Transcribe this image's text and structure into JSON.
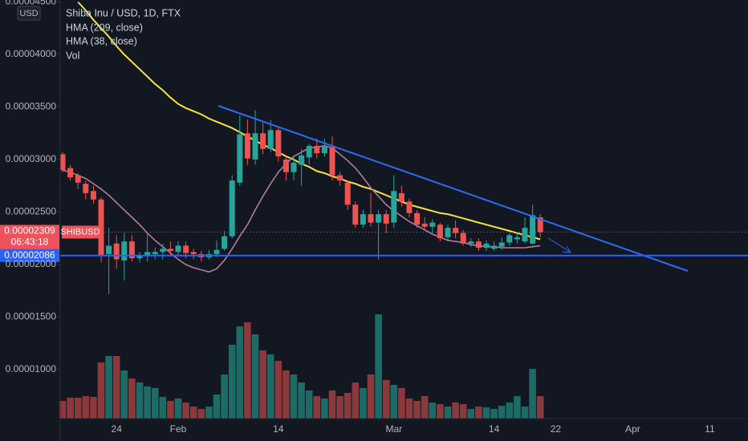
{
  "chart_data": {
    "type": "candlestick",
    "title": "Shiba Inu / USD, 1D, FTX",
    "currency": "USD",
    "categories": [
      null,
      null,
      null,
      null,
      null,
      null,
      null,
      "24",
      null,
      null,
      null,
      null,
      null,
      null,
      null,
      "Feb",
      null,
      null,
      null,
      null,
      null,
      null,
      null,
      null,
      null,
      null,
      null,
      null,
      "14",
      null,
      null,
      null,
      null,
      null,
      null,
      null,
      null,
      null,
      null,
      null,
      null,
      null,
      null,
      "Mar",
      null,
      null,
      null,
      null,
      null,
      null,
      null,
      null,
      null,
      null,
      null,
      null,
      "14",
      null,
      null,
      null,
      null,
      null,
      null,
      null,
      "22",
      null,
      null,
      null,
      null,
      null,
      null,
      null,
      null,
      null,
      "Apr",
      null,
      null,
      null,
      null,
      null,
      null,
      null,
      null,
      null,
      "11",
      null,
      null,
      null,
      null,
      null
    ],
    "open": [
      3.05e-05,
      2.92e-05,
      2.85e-05,
      2.77e-05,
      2.7e-05,
      2.62e-05,
      2.1e-05,
      2.2e-05,
      2.04e-05,
      2.22e-05,
      2.06e-05,
      2.08e-05,
      2.1e-05,
      2.12e-05,
      2.15e-05,
      2.12e-05,
      2.18e-05,
      2.12e-05,
      2.1e-05,
      2.07e-05,
      2.1e-05,
      2.15e-05,
      2.27e-05,
      2.78e-05,
      3.25e-05,
      3e-05,
      3.25e-05,
      3.1e-05,
      3.28e-05,
      3e-05,
      2.88e-05,
      2.95e-05,
      3.02e-05,
      3.13e-05,
      3.06e-05,
      3.12e-05,
      2.85e-05,
      2.78e-05,
      2.57e-05,
      2.38e-05,
      2.48e-05,
      2.4e-05,
      2.48e-05,
      2.4e-05,
      2.68e-05,
      2.6e-05,
      2.49e-05,
      2.39e-05,
      2.36e-05,
      2.38e-05,
      2.26e-05,
      2.35e-05,
      2.3e-05,
      2.2e-05,
      2.22e-05,
      2.16e-05,
      2.15e-05,
      2.17e-05,
      2.21e-05,
      2.24e-05,
      2.22e-05,
      2.2e-05,
      2.45e-05,
      null,
      null,
      null,
      null,
      null,
      null,
      null,
      null,
      null,
      null,
      null,
      null,
      null,
      null,
      null,
      null,
      null,
      null,
      null,
      null,
      null,
      null,
      null,
      null,
      null,
      null,
      null
    ],
    "high": [
      3.07e-05,
      2.95e-05,
      2.87e-05,
      2.8e-05,
      2.75e-05,
      2.64e-05,
      2.35e-05,
      2.28e-05,
      2.3e-05,
      2.28e-05,
      2.12e-05,
      2.3e-05,
      2.16e-05,
      2.2e-05,
      2.22e-05,
      2.22e-05,
      2.22e-05,
      2.15e-05,
      2.13e-05,
      2.14e-05,
      2.23e-05,
      2.32e-05,
      2.85e-05,
      3.42e-05,
      3.38e-05,
      3.47e-05,
      3.35e-05,
      3.38e-05,
      3.3e-05,
      3.02e-05,
      3.02e-05,
      3.1e-05,
      3.15e-05,
      3.2e-05,
      3.2e-05,
      3.22e-05,
      2.88e-05,
      2.8e-05,
      2.6e-05,
      2.52e-05,
      2.68e-05,
      2.52e-05,
      2.52e-05,
      2.85e-05,
      2.75e-05,
      2.63e-05,
      2.52e-05,
      2.45e-05,
      2.43e-05,
      2.4e-05,
      2.38e-05,
      2.42e-05,
      2.33e-05,
      2.25e-05,
      2.25e-05,
      2.23e-05,
      2.22e-05,
      2.26e-05,
      2.3e-05,
      2.3e-05,
      2.45e-05,
      2.57e-05,
      2.48e-05,
      null,
      null,
      null,
      null,
      null,
      null,
      null,
      null,
      null,
      null,
      null,
      null,
      null,
      null,
      null,
      null,
      null,
      null,
      null,
      null,
      null,
      null,
      null,
      null,
      null,
      null,
      null
    ],
    "low": [
      2.88e-05,
      2.8e-05,
      2.72e-05,
      2.62e-05,
      2.58e-05,
      2.02e-05,
      1.72e-05,
      1.96e-05,
      1.85e-05,
      2.03e-05,
      2.02e-05,
      2.03e-05,
      2.05e-05,
      2.05e-05,
      2.08e-05,
      2.08e-05,
      2.06e-05,
      2.05e-05,
      2.03e-05,
      2.05e-05,
      2.07e-05,
      2.13e-05,
      2.25e-05,
      2.75e-05,
      2.95e-05,
      2.95e-05,
      3.05e-05,
      3.07e-05,
      2.98e-05,
      2.8e-05,
      2.8e-05,
      2.75e-05,
      2.95e-05,
      3.01e-05,
      3.03e-05,
      2.8e-05,
      2.75e-05,
      2.52e-05,
      2.35e-05,
      2.35e-05,
      2.36e-05,
      2.05e-05,
      2.3e-05,
      2.35e-05,
      2.55e-05,
      2.45e-05,
      2.35e-05,
      2.32e-05,
      2.3e-05,
      2.22e-05,
      2.23e-05,
      2.25e-05,
      2.18e-05,
      2.17e-05,
      2.13e-05,
      2.13e-05,
      2.13e-05,
      2.14e-05,
      2.18e-05,
      2.2e-05,
      2.2e-05,
      2.19e-05,
      2.26e-05,
      null,
      null,
      null,
      null,
      null,
      null,
      null,
      null,
      null,
      null,
      null,
      null,
      null,
      null,
      null,
      null,
      null,
      null,
      null,
      null,
      null,
      null,
      null,
      null,
      null,
      null,
      null
    ],
    "close": [
      2.9e-05,
      2.83e-05,
      2.78e-05,
      2.68e-05,
      2.62e-05,
      2.08e-05,
      2.18e-05,
      2.05e-05,
      2.22e-05,
      2.06e-05,
      2.09e-05,
      2.12e-05,
      2.12e-05,
      2.15e-05,
      2.13e-05,
      2.18e-05,
      2.11e-05,
      2.1e-05,
      2.07e-05,
      2.1e-05,
      2.14e-05,
      2.27e-05,
      2.8e-05,
      3.24e-05,
      3.01e-05,
      3.25e-05,
      3.1e-05,
      3.28e-05,
      3.03e-05,
      2.88e-05,
      2.97e-05,
      3.04e-05,
      3.13e-05,
      3.06e-05,
      3.12e-05,
      2.85e-05,
      2.8e-05,
      2.57e-05,
      2.38e-05,
      2.48e-05,
      2.4e-05,
      2.48e-05,
      2.39e-05,
      2.7e-05,
      2.6e-05,
      2.49e-05,
      2.38e-05,
      2.36e-05,
      2.4e-05,
      2.25e-05,
      2.35e-05,
      2.3e-05,
      2.2e-05,
      2.22e-05,
      2.16e-05,
      2.2e-05,
      2.18e-05,
      2.21e-05,
      2.28e-05,
      2.26e-05,
      2.35e-05,
      2.47e-05,
      2.309e-05,
      null,
      null,
      null,
      null,
      null,
      null,
      null,
      null,
      null,
      null,
      null,
      null,
      null,
      null,
      null,
      null,
      null,
      null,
      null,
      null,
      null,
      null,
      null,
      null,
      null,
      null,
      null
    ],
    "volume": {
      "name": "Vol",
      "values": [
        22,
        26,
        26,
        28,
        27,
        70,
        78,
        78,
        60,
        50,
        45,
        40,
        38,
        27,
        22,
        25,
        20,
        15,
        12,
        15,
        30,
        55,
        92,
        115,
        120,
        105,
        85,
        80,
        72,
        60,
        55,
        45,
        35,
        28,
        25,
        35,
        28,
        32,
        45,
        38,
        55,
        130,
        48,
        42,
        38,
        25,
        22,
        28,
        20,
        18,
        15,
        20,
        18,
        12,
        15,
        14,
        12,
        16,
        20,
        28,
        15,
        62,
        28,
        null,
        null,
        null,
        null,
        null,
        null,
        null,
        null,
        null,
        null,
        null,
        null,
        null,
        null,
        null,
        null,
        null,
        null,
        null,
        null,
        null,
        null,
        null,
        null,
        null,
        null,
        null
      ]
    },
    "series": [
      {
        "name": "HMA (209, close)",
        "color": "#f2e33c",
        "values": [
          null,
          null,
          4.5e-05,
          4.42e-05,
          4.33e-05,
          4.25e-05,
          4.17e-05,
          4.08e-05,
          4e-05,
          3.93e-05,
          3.86e-05,
          3.79e-05,
          3.72e-05,
          3.66e-05,
          3.59e-05,
          3.53e-05,
          3.49e-05,
          3.46e-05,
          3.43e-05,
          3.39e-05,
          3.36e-05,
          3.33e-05,
          3.3e-05,
          3.26e-05,
          3.22e-05,
          3.18e-05,
          3.14e-05,
          3.11e-05,
          3.07e-05,
          3.03e-05,
          3e-05,
          2.96e-05,
          2.93e-05,
          2.89e-05,
          2.87e-05,
          2.84e-05,
          2.82e-05,
          2.79e-05,
          2.77e-05,
          2.74e-05,
          2.72e-05,
          2.69e-05,
          2.66e-05,
          2.63e-05,
          2.6e-05,
          2.57e-05,
          2.55e-05,
          2.53e-05,
          2.51e-05,
          2.49e-05,
          2.48e-05,
          2.46e-05,
          2.44e-05,
          2.42e-05,
          2.4e-05,
          2.38e-05,
          2.36e-05,
          2.34e-05,
          2.32e-05,
          2.3e-05,
          2.28e-05,
          2.26e-05,
          2.24e-05,
          null,
          null,
          null,
          null,
          null,
          null,
          null,
          null,
          null,
          null,
          null,
          null,
          null,
          null,
          null,
          null,
          null,
          null,
          null,
          null,
          null,
          null,
          null,
          null,
          null,
          null,
          null
        ]
      },
      {
        "name": "HMA (38, close)",
        "color": "#b07c9f",
        "values": [
          2.9e-05,
          2.88e-05,
          2.85e-05,
          2.82e-05,
          2.77e-05,
          2.72e-05,
          2.66e-05,
          2.59e-05,
          2.52e-05,
          2.45e-05,
          2.38e-05,
          2.3e-05,
          2.23e-05,
          2.17e-05,
          2.11e-05,
          2.05e-05,
          2e-05,
          1.97e-05,
          1.95e-05,
          1.93e-05,
          1.96e-05,
          2.04e-05,
          2.15e-05,
          2.27e-05,
          2.38e-05,
          2.52e-05,
          2.65e-05,
          2.77e-05,
          2.88e-05,
          2.96e-05,
          3.03e-05,
          3.07e-05,
          3.11e-05,
          3.12e-05,
          3.13e-05,
          3.11e-05,
          3.05e-05,
          2.99e-05,
          2.92e-05,
          2.83e-05,
          2.73e-05,
          2.65e-05,
          2.57e-05,
          2.51e-05,
          2.46e-05,
          2.41e-05,
          2.37e-05,
          2.33e-05,
          2.29e-05,
          2.26e-05,
          2.23e-05,
          2.22e-05,
          2.21e-05,
          2.19e-05,
          2.18e-05,
          2.17e-05,
          2.17e-05,
          2.16e-05,
          2.16e-05,
          2.16e-05,
          2.16e-05,
          2.17e-05,
          2.18e-05,
          null,
          null,
          null,
          null,
          null,
          null,
          null,
          null,
          null,
          null,
          null,
          null,
          null,
          null,
          null,
          null,
          null,
          null,
          null,
          null,
          null,
          null,
          null,
          null,
          null,
          null,
          null
        ]
      }
    ],
    "ylim": [
      5.34e-06,
      4.519e-05
    ],
    "yticks": [
      {
        "value": 4.5e-05,
        "label": "0.00004500"
      },
      {
        "value": 4e-05,
        "label": "0.00004000"
      },
      {
        "value": 3.5e-05,
        "label": "0.00003500"
      },
      {
        "value": 3e-05,
        "label": "0.00003000"
      },
      {
        "value": 2.5e-05,
        "label": "0.00002500"
      },
      {
        "value": 2e-05,
        "label": "0.00002000"
      },
      {
        "value": 1.5e-05,
        "label": "0.00001500"
      },
      {
        "value": 1e-05,
        "label": "0.00001000"
      }
    ],
    "last_price": {
      "value": 2.309e-05,
      "label": "0.00002309",
      "countdown": "06:43:18",
      "symbol": "SHIBUSD",
      "color": "#f0515a"
    },
    "level": {
      "value": 2.086e-05,
      "label": "0.00002086",
      "color": "#2962ff"
    },
    "up_color": "#26a69a",
    "down_color": "#ef5350",
    "volume_up_color": "#1d6b66",
    "volume_down_color": "#8a393c"
  }
}
